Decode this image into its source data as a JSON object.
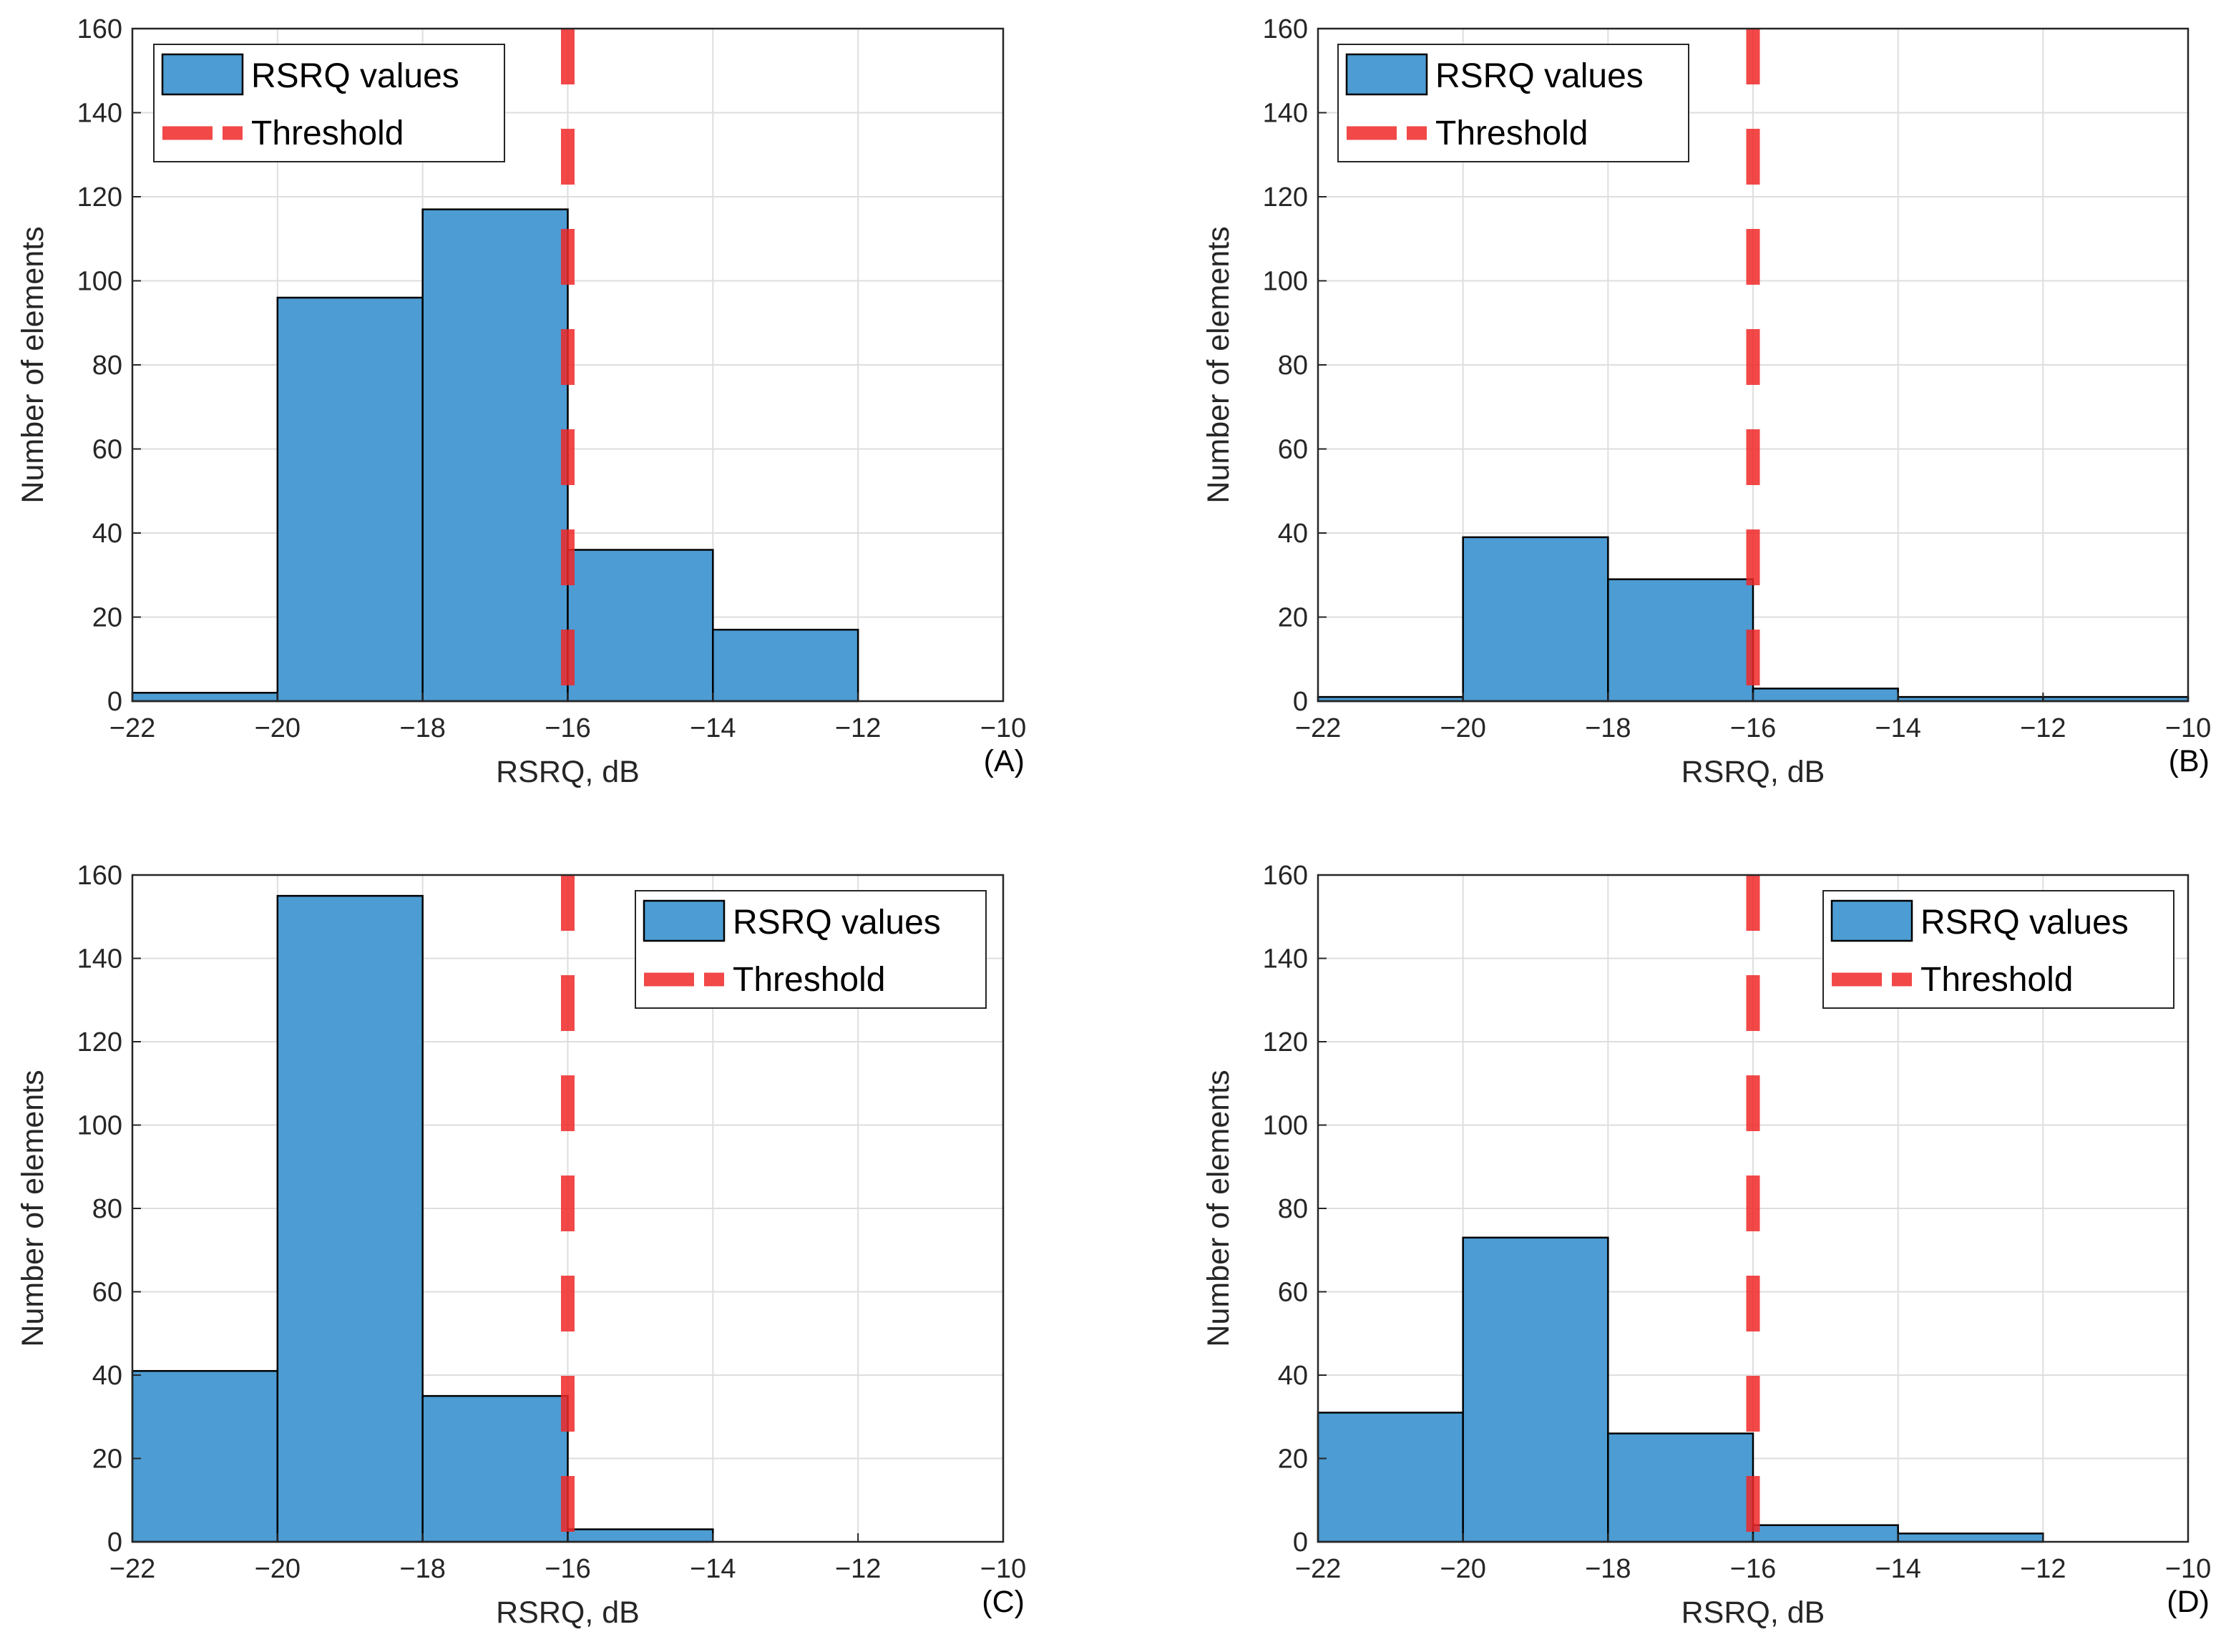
{
  "chart_data": [
    {
      "type": "bar",
      "panel": "(A)",
      "xlabel": "RSRQ, dB",
      "ylabel": "Number of elements",
      "xlim": [
        -22,
        -10
      ],
      "ylim": [
        0,
        160
      ],
      "xticks": [
        -22,
        -20,
        -18,
        -16,
        -14,
        -12,
        -10
      ],
      "yticks": [
        0,
        20,
        40,
        60,
        80,
        100,
        120,
        140,
        160
      ],
      "grid": true,
      "bin_edges": [
        -22,
        -20,
        -18,
        -16,
        -14,
        -12
      ],
      "values": [
        2,
        96,
        117,
        36,
        17
      ],
      "threshold": -16,
      "legend_position": "top-left",
      "legend": [
        "RSRQ values",
        "Threshold"
      ]
    },
    {
      "type": "bar",
      "panel": "(B)",
      "xlabel": "RSRQ, dB",
      "ylabel": "Number of elements",
      "xlim": [
        -22,
        -10
      ],
      "ylim": [
        0,
        160
      ],
      "xticks": [
        -22,
        -20,
        -18,
        -16,
        -14,
        -12,
        -10
      ],
      "yticks": [
        0,
        20,
        40,
        60,
        80,
        100,
        120,
        140,
        160
      ],
      "grid": true,
      "bin_edges": [
        -22,
        -20,
        -18,
        -16,
        -14,
        -12,
        -10
      ],
      "values": [
        1,
        39,
        29,
        3,
        1,
        1
      ],
      "threshold": -16,
      "legend_position": "top-left",
      "legend": [
        "RSRQ values",
        "Threshold"
      ]
    },
    {
      "type": "bar",
      "panel": "(C)",
      "xlabel": "RSRQ, dB",
      "ylabel": "Number of elements",
      "xlim": [
        -22,
        -10
      ],
      "ylim": [
        0,
        160
      ],
      "xticks": [
        -22,
        -20,
        -18,
        -16,
        -14,
        -12,
        -10
      ],
      "yticks": [
        0,
        20,
        40,
        60,
        80,
        100,
        120,
        140,
        160
      ],
      "grid": true,
      "bin_edges": [
        -22,
        -20,
        -18,
        -16,
        -14
      ],
      "values": [
        41,
        155,
        35,
        3
      ],
      "threshold": -16,
      "legend_position": "top-right",
      "legend": [
        "RSRQ values",
        "Threshold"
      ]
    },
    {
      "type": "bar",
      "panel": "(D)",
      "xlabel": "RSRQ, dB",
      "ylabel": "Number of elements",
      "xlim": [
        -22,
        -10
      ],
      "ylim": [
        0,
        160
      ],
      "xticks": [
        -22,
        -20,
        -18,
        -16,
        -14,
        -12,
        -10
      ],
      "yticks": [
        0,
        20,
        40,
        60,
        80,
        100,
        120,
        140,
        160
      ],
      "grid": true,
      "bin_edges": [
        -22,
        -20,
        -18,
        -16,
        -14,
        -12
      ],
      "values": [
        31,
        73,
        26,
        4,
        2
      ],
      "threshold": -16,
      "legend_position": "top-right",
      "legend": [
        "RSRQ values",
        "Threshold"
      ]
    }
  ],
  "colors": {
    "bar_fill": "#4d9cd3",
    "bar_edge": "#000000",
    "threshold": "#f02828"
  }
}
